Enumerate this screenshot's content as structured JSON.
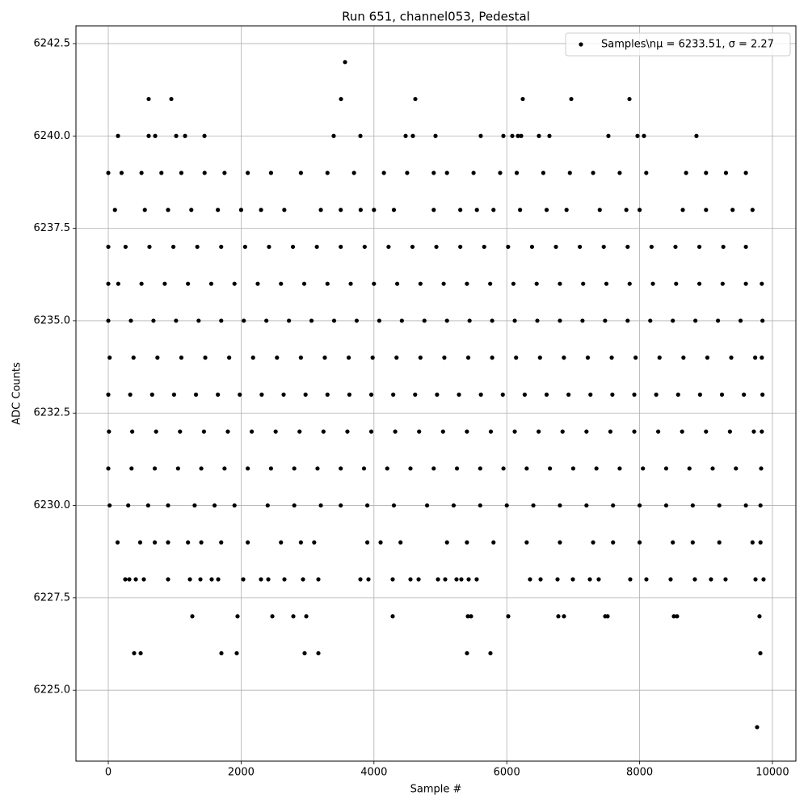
{
  "chart_data": {
    "type": "scatter",
    "title": "Run 651, channel053, Pedestal",
    "x_label": "Sample #",
    "y_label": "ADC Counts",
    "xlim": [
      -487,
      10353
    ],
    "ylim": [
      6223.08,
      6242.98
    ],
    "xticks": [
      0,
      2000,
      4000,
      6000,
      8000,
      10000
    ],
    "yticks": [
      {
        "value": 6225,
        "label": "6225.0"
      },
      {
        "value": 6227.5,
        "label": "6227.5"
      },
      {
        "value": 6230,
        "label": "6230.0"
      },
      {
        "value": 6232.5,
        "label": "6232.5"
      },
      {
        "value": 6235,
        "label": "6235.0"
      },
      {
        "value": 6237.5,
        "label": "6237.5"
      },
      {
        "value": 6240,
        "label": "6240.0"
      },
      {
        "value": 6242.5,
        "label": "6242.5"
      }
    ],
    "grid": true,
    "legend_position": "upper right",
    "series": [
      {
        "name": "Samples\\nμ = 6233.51, σ = 2.27",
        "color": "#000000",
        "x": [
          3565,
          608,
          949,
          3504,
          4623,
          6241,
          6971,
          7847,
          146,
          608,
          706,
          1022,
          1156,
          1448,
          3394,
          3796,
          4477,
          4586,
          4927,
          5608,
          5949,
          6083,
          6168,
          6217,
          6484,
          6642,
          7530,
          7968,
          8066,
          8856,
          9769,
          389,
          487,
          1703,
          1934,
          2956,
          3163,
          5401,
          5754,
          9818,
          1265,
          1946,
          2470,
          2786,
          2981,
          4282,
          5414,
          5462,
          6022,
          6776,
          6861,
          7482,
          7518,
          8516,
          8564,
          9805,
          255,
          316,
          414,
          535,
          900,
          1229,
          1387,
          1557,
          1655,
          2032,
          2299,
          2409,
          2652,
          2932,
          3163,
          3796,
          3917,
          4282,
          4550,
          4672,
          4964,
          5073,
          5243,
          5316,
          5426,
          5547,
          6350,
          6509,
          6764,
          6995,
          7251,
          7384,
          7859,
          8102,
          8467,
          8832,
          9075,
          9294,
          9745,
          9866,
          140,
          480,
          700,
          900,
          1200,
          1400,
          1700,
          2100,
          2600,
          2900,
          3100,
          3900,
          4100,
          4400,
          5100,
          5400,
          5800,
          6300,
          6800,
          7300,
          7600,
          8000,
          8500,
          8800,
          9200,
          9700,
          9820,
          20,
          300,
          600,
          900,
          1300,
          1600,
          1900,
          2400,
          2800,
          3200,
          3500,
          3900,
          4300,
          4800,
          5200,
          5600,
          6000,
          6400,
          6800,
          7200,
          7600,
          8000,
          8400,
          8800,
          9200,
          9600,
          9820,
          0,
          350,
          700,
          1050,
          1400,
          1750,
          2100,
          2450,
          2800,
          3150,
          3500,
          3850,
          4200,
          4550,
          4900,
          5250,
          5600,
          5950,
          6300,
          6650,
          7000,
          7350,
          7700,
          8050,
          8400,
          8750,
          9100,
          9450,
          9830,
          10,
          360,
          720,
          1080,
          1440,
          1800,
          2160,
          2520,
          2880,
          3240,
          3600,
          3960,
          4320,
          4680,
          5040,
          5400,
          5760,
          6120,
          6480,
          6840,
          7200,
          7560,
          7920,
          8280,
          8640,
          9000,
          9360,
          9720,
          9840,
          0,
          330,
          660,
          990,
          1320,
          1650,
          1980,
          2310,
          2640,
          2970,
          3300,
          3630,
          3960,
          4290,
          4620,
          4950,
          5280,
          5610,
          5940,
          6270,
          6600,
          6930,
          7260,
          7590,
          7920,
          8250,
          8580,
          8910,
          9240,
          9570,
          9850,
          20,
          380,
          740,
          1100,
          1460,
          1820,
          2180,
          2540,
          2900,
          3260,
          3620,
          3980,
          4340,
          4700,
          5060,
          5420,
          5780,
          6140,
          6500,
          6860,
          7220,
          7580,
          7940,
          8300,
          8660,
          9020,
          9380,
          9740,
          9840,
          0,
          340,
          680,
          1020,
          1360,
          1700,
          2040,
          2380,
          2720,
          3060,
          3400,
          3740,
          4080,
          4420,
          4760,
          5100,
          5440,
          5780,
          6120,
          6460,
          6800,
          7140,
          7480,
          7820,
          8160,
          8500,
          8840,
          9180,
          9520,
          9850,
          0,
          150,
          500,
          850,
          1200,
          1550,
          1900,
          2250,
          2600,
          2950,
          3300,
          3650,
          4000,
          4350,
          4700,
          5050,
          5400,
          5750,
          6100,
          6450,
          6800,
          7150,
          7500,
          7850,
          8200,
          8550,
          8900,
          9250,
          9600,
          9840,
          0,
          260,
          620,
          980,
          1340,
          1700,
          2060,
          2420,
          2780,
          3140,
          3500,
          3860,
          4220,
          4580,
          4940,
          5300,
          5660,
          6020,
          6380,
          6740,
          7100,
          7460,
          7820,
          8180,
          8540,
          8900,
          9260,
          9600,
          100,
          550,
          900,
          1250,
          1650,
          2000,
          2300,
          2650,
          3200,
          3500,
          3800,
          4000,
          4300,
          4900,
          5300,
          5550,
          5800,
          6200,
          6600,
          6900,
          7400,
          7800,
          8000,
          8650,
          9000,
          9400,
          9700,
          0,
          200,
          500,
          800,
          1100,
          1450,
          1750,
          2100,
          2450,
          2900,
          3300,
          3700,
          4150,
          4500,
          4900,
          5100,
          5500,
          5900,
          6150,
          6550,
          6950,
          7300,
          7700,
          8100,
          8700,
          9000,
          9300,
          9600
        ],
        "y": [
          6242,
          6241,
          6241,
          6241,
          6241,
          6241,
          6241,
          6241,
          6240,
          6240,
          6240,
          6240,
          6240,
          6240,
          6240,
          6240,
          6240,
          6240,
          6240,
          6240,
          6240,
          6240,
          6240,
          6240,
          6240,
          6240,
          6240,
          6240,
          6240,
          6240,
          6224,
          6226,
          6226,
          6226,
          6226,
          6226,
          6226,
          6226,
          6226,
          6226,
          6227,
          6227,
          6227,
          6227,
          6227,
          6227,
          6227,
          6227,
          6227,
          6227,
          6227,
          6227,
          6227,
          6227,
          6227,
          6227,
          6228,
          6228,
          6228,
          6228,
          6228,
          6228,
          6228,
          6228,
          6228,
          6228,
          6228,
          6228,
          6228,
          6228,
          6228,
          6228,
          6228,
          6228,
          6228,
          6228,
          6228,
          6228,
          6228,
          6228,
          6228,
          6228,
          6228,
          6228,
          6228,
          6228,
          6228,
          6228,
          6228,
          6228,
          6228,
          6228,
          6228,
          6228,
          6228,
          6228,
          6229,
          6229,
          6229,
          6229,
          6229,
          6229,
          6229,
          6229,
          6229,
          6229,
          6229,
          6229,
          6229,
          6229,
          6229,
          6229,
          6229,
          6229,
          6229,
          6229,
          6229,
          6229,
          6229,
          6229,
          6229,
          6229,
          6229,
          6230,
          6230,
          6230,
          6230,
          6230,
          6230,
          6230,
          6230,
          6230,
          6230,
          6230,
          6230,
          6230,
          6230,
          6230,
          6230,
          6230,
          6230,
          6230,
          6230,
          6230,
          6230,
          6230,
          6230,
          6230,
          6230,
          6230,
          6231,
          6231,
          6231,
          6231,
          6231,
          6231,
          6231,
          6231,
          6231,
          6231,
          6231,
          6231,
          6231,
          6231,
          6231,
          6231,
          6231,
          6231,
          6231,
          6231,
          6231,
          6231,
          6231,
          6231,
          6231,
          6231,
          6231,
          6231,
          6231,
          6232,
          6232,
          6232,
          6232,
          6232,
          6232,
          6232,
          6232,
          6232,
          6232,
          6232,
          6232,
          6232,
          6232,
          6232,
          6232,
          6232,
          6232,
          6232,
          6232,
          6232,
          6232,
          6232,
          6232,
          6232,
          6232,
          6232,
          6232,
          6232,
          6233,
          6233,
          6233,
          6233,
          6233,
          6233,
          6233,
          6233,
          6233,
          6233,
          6233,
          6233,
          6233,
          6233,
          6233,
          6233,
          6233,
          6233,
          6233,
          6233,
          6233,
          6233,
          6233,
          6233,
          6233,
          6233,
          6233,
          6233,
          6233,
          6233,
          6233,
          6234,
          6234,
          6234,
          6234,
          6234,
          6234,
          6234,
          6234,
          6234,
          6234,
          6234,
          6234,
          6234,
          6234,
          6234,
          6234,
          6234,
          6234,
          6234,
          6234,
          6234,
          6234,
          6234,
          6234,
          6234,
          6234,
          6234,
          6234,
          6234,
          6235,
          6235,
          6235,
          6235,
          6235,
          6235,
          6235,
          6235,
          6235,
          6235,
          6235,
          6235,
          6235,
          6235,
          6235,
          6235,
          6235,
          6235,
          6235,
          6235,
          6235,
          6235,
          6235,
          6235,
          6235,
          6235,
          6235,
          6235,
          6235,
          6235,
          6236,
          6236,
          6236,
          6236,
          6236,
          6236,
          6236,
          6236,
          6236,
          6236,
          6236,
          6236,
          6236,
          6236,
          6236,
          6236,
          6236,
          6236,
          6236,
          6236,
          6236,
          6236,
          6236,
          6236,
          6236,
          6236,
          6236,
          6236,
          6236,
          6236,
          6237,
          6237,
          6237,
          6237,
          6237,
          6237,
          6237,
          6237,
          6237,
          6237,
          6237,
          6237,
          6237,
          6237,
          6237,
          6237,
          6237,
          6237,
          6237,
          6237,
          6237,
          6237,
          6237,
          6237,
          6237,
          6237,
          6237,
          6237,
          6238,
          6238,
          6238,
          6238,
          6238,
          6238,
          6238,
          6238,
          6238,
          6238,
          6238,
          6238,
          6238,
          6238,
          6238,
          6238,
          6238,
          6238,
          6238,
          6238,
          6238,
          6238,
          6238,
          6238,
          6238,
          6238,
          6238,
          6239,
          6239,
          6239,
          6239,
          6239,
          6239,
          6239,
          6239,
          6239,
          6239,
          6239,
          6239,
          6239,
          6239,
          6239,
          6239,
          6239,
          6239,
          6239,
          6239,
          6239,
          6239,
          6239,
          6239,
          6239,
          6239,
          6239,
          6239
        ]
      }
    ]
  }
}
